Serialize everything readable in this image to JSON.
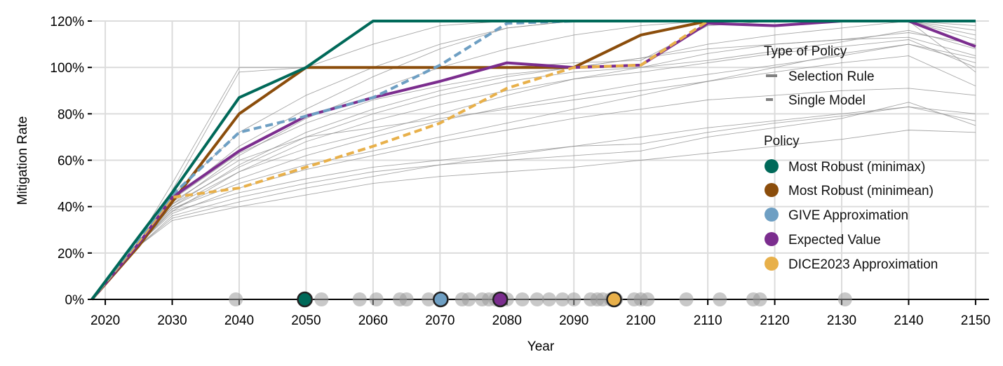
{
  "chart_data": {
    "type": "line",
    "xlabel": "Year",
    "ylabel": "Mitigation Rate",
    "xlim": [
      2018,
      2152
    ],
    "ylim": [
      0,
      120
    ],
    "y_ticks": [
      {
        "value": 0,
        "label": "0%"
      },
      {
        "value": 20,
        "label": "20%"
      },
      {
        "value": 40,
        "label": "40%"
      },
      {
        "value": 60,
        "label": "60%"
      },
      {
        "value": 80,
        "label": "80%"
      },
      {
        "value": 100,
        "label": "100%"
      },
      {
        "value": 120,
        "label": "120%"
      }
    ],
    "x_ticks": [
      {
        "value": 2020,
        "label": "2020"
      },
      {
        "value": 2030,
        "label": "2030"
      },
      {
        "value": 2040,
        "label": "2040"
      },
      {
        "value": 2050,
        "label": "2050"
      },
      {
        "value": 2060,
        "label": "2060"
      },
      {
        "value": 2070,
        "label": "2070"
      },
      {
        "value": 2080,
        "label": "2080"
      },
      {
        "value": 2090,
        "label": "2090"
      },
      {
        "value": 2100,
        "label": "2100"
      },
      {
        "value": 2110,
        "label": "2110"
      },
      {
        "value": 2120,
        "label": "2120"
      },
      {
        "value": 2130,
        "label": "2130"
      },
      {
        "value": 2140,
        "label": "2140"
      },
      {
        "value": 2150,
        "label": "2150"
      }
    ],
    "grid": true,
    "legend_position": "right",
    "legend_type_title": "Type of Policy",
    "legend_types": [
      {
        "label": "Selection Rule",
        "style": "solid"
      },
      {
        "label": "Single Model",
        "style": "dashed"
      }
    ],
    "legend_policy_title": "Policy",
    "background_series_color": "#888888",
    "background_series": [
      {
        "x": [
          2018,
          2025,
          2030,
          2040,
          2050,
          2060,
          2070,
          2080,
          2090,
          2100,
          2110,
          2120,
          2130,
          2140,
          2150
        ],
        "y": [
          0,
          24,
          38,
          55,
          65,
          72,
          80,
          88,
          95,
          100,
          106,
          110,
          112,
          115,
          110
        ]
      },
      {
        "x": [
          2018,
          2025,
          2030,
          2040,
          2050,
          2060,
          2070,
          2080,
          2090,
          2100,
          2110,
          2120,
          2130,
          2140,
          2150
        ],
        "y": [
          0,
          23,
          35,
          42,
          48,
          53,
          58,
          62,
          66,
          70,
          74,
          77,
          80,
          83,
          80
        ]
      },
      {
        "x": [
          2018,
          2025,
          2030,
          2040,
          2050,
          2060,
          2070,
          2080,
          2090,
          2100,
          2110,
          2120,
          2130,
          2140,
          2150
        ],
        "y": [
          0,
          23,
          34,
          40,
          45,
          50,
          53,
          55,
          57,
          60,
          63,
          66,
          69,
          73,
          72
        ]
      },
      {
        "x": [
          2018,
          2025,
          2030,
          2040,
          2050,
          2060,
          2070,
          2080,
          2090,
          2100,
          2110,
          2120,
          2130,
          2140,
          2150
        ],
        "y": [
          0,
          25,
          40,
          58,
          72,
          82,
          90,
          96,
          100,
          104,
          108,
          110,
          112,
          113,
          105
        ]
      },
      {
        "x": [
          2018,
          2025,
          2030,
          2040,
          2050,
          2060,
          2070,
          2080,
          2090,
          2100,
          2110,
          2120,
          2130,
          2140,
          2150
        ],
        "y": [
          0,
          24,
          37,
          48,
          56,
          62,
          68,
          73,
          78,
          82,
          86,
          88,
          90,
          91,
          88
        ]
      },
      {
        "x": [
          2018,
          2025,
          2030,
          2040,
          2050,
          2060,
          2070,
          2080,
          2090,
          2100,
          2110,
          2120,
          2130,
          2140,
          2150
        ],
        "y": [
          0,
          24,
          39,
          52,
          62,
          70,
          77,
          83,
          88,
          93,
          97,
          101,
          105,
          110,
          104
        ]
      },
      {
        "x": [
          2018,
          2025,
          2030,
          2040,
          2050,
          2060,
          2070,
          2080,
          2090,
          2100,
          2110,
          2120,
          2130,
          2140,
          2150
        ],
        "y": [
          0,
          24,
          41,
          62,
          78,
          90,
          100,
          108,
          114,
          118,
          120,
          120,
          120,
          120,
          116
        ]
      },
      {
        "x": [
          2018,
          2025,
          2030,
          2040,
          2050,
          2060,
          2070,
          2080,
          2090,
          2100,
          2110,
          2120,
          2130,
          2140,
          2150
        ],
        "y": [
          0,
          26,
          45,
          72,
          88,
          100,
          110,
          117,
          120,
          120,
          120,
          120,
          120,
          120,
          118
        ]
      },
      {
        "x": [
          2018,
          2025,
          2030,
          2040,
          2050,
          2060,
          2070,
          2080,
          2090,
          2100,
          2110,
          2120,
          2130,
          2140,
          2150
        ],
        "y": [
          0,
          26,
          50,
          100,
          100,
          110,
          118,
          120,
          120,
          120,
          120,
          120,
          120,
          120,
          120
        ]
      },
      {
        "x": [
          2018,
          2025,
          2030,
          2040,
          2050,
          2060,
          2070,
          2080,
          2090,
          2100,
          2110,
          2120,
          2130,
          2140,
          2150
        ],
        "y": [
          0,
          26,
          47,
          98,
          100,
          100,
          100,
          100,
          102,
          103,
          118,
          120,
          120,
          120,
          112
        ]
      },
      {
        "x": [
          2018,
          2025,
          2030,
          2040,
          2050,
          2060,
          2070,
          2080,
          2090,
          2100,
          2110,
          2120,
          2130,
          2140,
          2150
        ],
        "y": [
          0,
          25,
          43,
          63,
          76,
          86,
          92,
          97,
          100,
          104,
          110,
          114,
          117,
          120,
          98
        ]
      },
      {
        "x": [
          2018,
          2025,
          2030,
          2040,
          2050,
          2060,
          2070,
          2080,
          2090,
          2100,
          2110,
          2120,
          2130,
          2140,
          2150
        ],
        "y": [
          0,
          24,
          38,
          46,
          52,
          57,
          60,
          63,
          66,
          67,
          72,
          76,
          79,
          83,
          77
        ]
      },
      {
        "x": [
          2018,
          2025,
          2030,
          2040,
          2050,
          2060,
          2070,
          2080,
          2090,
          2100,
          2110,
          2120,
          2130,
          2140,
          2150
        ],
        "y": [
          0,
          24,
          40,
          55,
          68,
          77,
          84,
          90,
          95,
          98,
          102,
          106,
          109,
          112,
          100
        ]
      },
      {
        "x": [
          2018,
          2025,
          2030,
          2040,
          2050,
          2060,
          2070,
          2080,
          2090,
          2100,
          2110,
          2120,
          2130,
          2140,
          2150
        ],
        "y": [
          0,
          25,
          42,
          60,
          70,
          74,
          78,
          82,
          86,
          90,
          94,
          98,
          102,
          105,
          92
        ]
      },
      {
        "x": [
          2018,
          2025,
          2030,
          2040,
          2050,
          2060,
          2070,
          2080,
          2090,
          2100,
          2110,
          2120,
          2130,
          2140,
          2150
        ],
        "y": [
          0,
          24,
          39,
          50,
          58,
          64,
          70,
          76,
          82,
          88,
          94,
          100,
          106,
          110,
          102
        ]
      },
      {
        "x": [
          2018,
          2025,
          2030,
          2040,
          2050,
          2060,
          2070,
          2080,
          2090,
          2100,
          2110,
          2120,
          2130,
          2140,
          2150
        ],
        "y": [
          0,
          25,
          43,
          66,
          82,
          96,
          108,
          117,
          120,
          120,
          120,
          120,
          120,
          120,
          114
        ]
      },
      {
        "x": [
          2018,
          2025,
          2030,
          2040,
          2050,
          2060,
          2070,
          2080,
          2090,
          2100,
          2110,
          2120,
          2130,
          2140,
          2150
        ],
        "y": [
          0,
          23,
          36,
          44,
          50,
          55,
          58,
          60,
          62,
          64,
          70,
          74,
          78,
          85,
          75
        ]
      },
      {
        "x": [
          2018,
          2025,
          2030,
          2040,
          2050,
          2060,
          2070,
          2080,
          2090,
          2100,
          2110,
          2120,
          2130,
          2140,
          2150
        ],
        "y": [
          0,
          24,
          41,
          57,
          70,
          80,
          88,
          94,
          98,
          100,
          103,
          107,
          111,
          116,
          108
        ]
      }
    ],
    "series": [
      {
        "name": "Most Robust (minimax)",
        "color": "#006959",
        "style": "solid",
        "x": [
          2018,
          2025,
          2030,
          2040,
          2050,
          2060,
          2070,
          2080,
          2090,
          2100,
          2110,
          2120,
          2130,
          2140,
          2150
        ],
        "y": [
          0,
          27,
          46,
          87,
          100,
          120,
          120,
          120,
          120,
          120,
          120,
          120,
          120,
          120,
          120
        ]
      },
      {
        "name": "Most Robust (minimean)",
        "color": "#8b4d0b",
        "style": "solid",
        "x": [
          2018,
          2025,
          2030,
          2040,
          2050,
          2060,
          2070,
          2080,
          2090,
          2100,
          2110,
          2120,
          2130,
          2140,
          2150
        ],
        "y": [
          0,
          23,
          42,
          80,
          100,
          100,
          100,
          100,
          100,
          114,
          120,
          120,
          120,
          120,
          120
        ]
      },
      {
        "name": "GIVE Approximation",
        "color": "#6e9fc3",
        "style": "dashed",
        "x": [
          2018,
          2025,
          2030,
          2040,
          2050,
          2060,
          2070,
          2080,
          2090,
          2100,
          2110,
          2120,
          2130,
          2140,
          2150
        ],
        "y": [
          0,
          26,
          45,
          72,
          79,
          87,
          101,
          119,
          120,
          120,
          120,
          120,
          120,
          120,
          120
        ]
      },
      {
        "name": "Expected Value",
        "color": "#7b2d8e",
        "style": "solid",
        "x": [
          2018,
          2025,
          2030,
          2040,
          2050,
          2060,
          2070,
          2080,
          2090,
          2100,
          2110,
          2120,
          2130,
          2140,
          2150
        ],
        "y": [
          0,
          24,
          44,
          64,
          79,
          87,
          94,
          102,
          100,
          101,
          119,
          118,
          120,
          120,
          109
        ]
      },
      {
        "name": "DICE2023 Approximation",
        "color": "#e8b04a",
        "style": "dashed",
        "x": [
          2018,
          2025,
          2030,
          2040,
          2050,
          2060,
          2070,
          2080,
          2090,
          2100,
          2110,
          2120,
          2130,
          2140,
          2150
        ],
        "y": [
          0,
          25,
          44,
          48,
          57,
          66,
          76,
          91,
          100,
          101,
          120,
          120,
          120,
          120,
          120
        ]
      }
    ],
    "rug_points": [
      2039.5,
      2050,
      2052.3,
      2058,
      2060.5,
      2064,
      2065,
      2068.3,
      2070.3,
      2073.3,
      2074.3,
      2076.3,
      2077.3,
      2078.3,
      2080,
      2082.3,
      2084.5,
      2086.3,
      2088.3,
      2090,
      2092.5,
      2093.5,
      2094.3,
      2095.5,
      2096.3,
      2099,
      2100,
      2101,
      2106.8,
      2111.8,
      2116.8,
      2117.8,
      2130.5
    ],
    "highlighted_points": [
      {
        "name": "Most Robust (minimax)",
        "x": 2049.8,
        "color": "#006959"
      },
      {
        "name": "GIVE Approximation",
        "x": 2070.1,
        "color": "#6e9fc3"
      },
      {
        "name": "Expected Value",
        "x": 2079,
        "color": "#7b2d8e"
      },
      {
        "name": "DICE2023 Approximation",
        "x": 2096,
        "color": "#e8b04a"
      }
    ]
  }
}
